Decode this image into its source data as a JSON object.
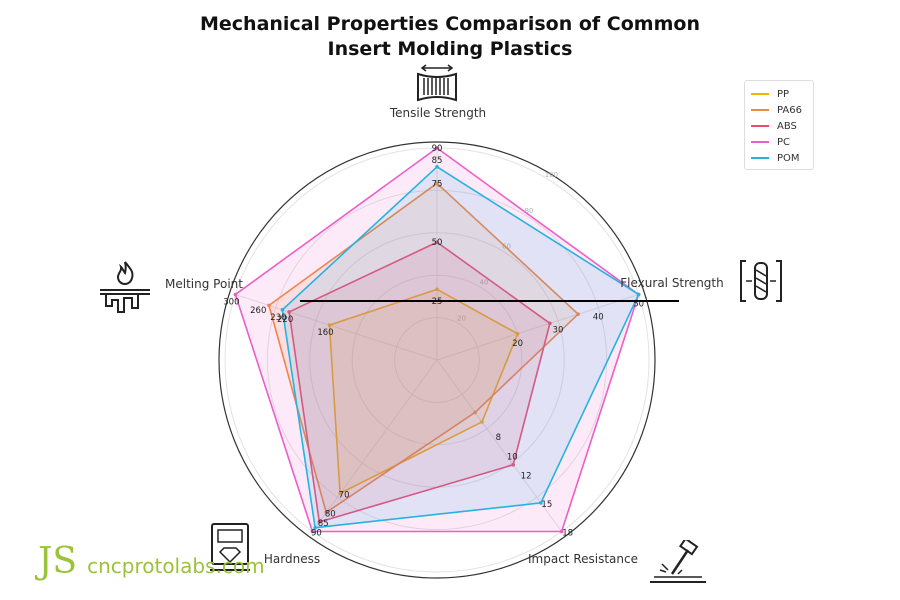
{
  "title_lines": [
    "Mechanical Properties Comparison of Common",
    "Insert Molding Plastics"
  ],
  "watermark": "cncprotolabs.com",
  "watermark_mark": "JS",
  "chart_data": {
    "type": "radar",
    "axes": [
      {
        "label": "Tensile Strength",
        "ticks": [
          "25",
          "50",
          "75",
          "85",
          "90"
        ],
        "max": 90
      },
      {
        "label": "Flexural Strength",
        "ticks": [
          "20",
          "30",
          "40",
          "50"
        ],
        "max": 50
      },
      {
        "label": "Impact Resistance",
        "ticks": [
          "8",
          "10",
          "12",
          "15",
          "18"
        ],
        "max": 18
      },
      {
        "label": "Hardness",
        "ticks": [
          "70",
          "80",
          "85",
          "90"
        ],
        "max": 90
      },
      {
        "label": "Melting Point",
        "ticks": [
          "160",
          "220",
          "230",
          "260",
          "300"
        ],
        "max": 300
      }
    ],
    "radial_ticks": [
      "20",
      "40",
      "60",
      "80",
      "100"
    ],
    "series": [
      {
        "name": "PP",
        "color": "#f5b400",
        "values": [
          30,
          20,
          6.5,
          70,
          160
        ]
      },
      {
        "name": "PA66",
        "color": "#f08a3a",
        "values": [
          75,
          35,
          5.5,
          80,
          250
        ]
      },
      {
        "name": "ABS",
        "color": "#ee4a6a",
        "values": [
          50,
          28,
          11,
          85,
          220
        ]
      },
      {
        "name": "PC",
        "color": "#ec5ec8",
        "values": [
          90,
          58,
          18,
          90,
          300
        ]
      },
      {
        "name": "POM",
        "color": "#25b3e0",
        "values": [
          82,
          50,
          15,
          88,
          230
        ]
      }
    ],
    "legend_position": "top-right",
    "grid": true
  }
}
